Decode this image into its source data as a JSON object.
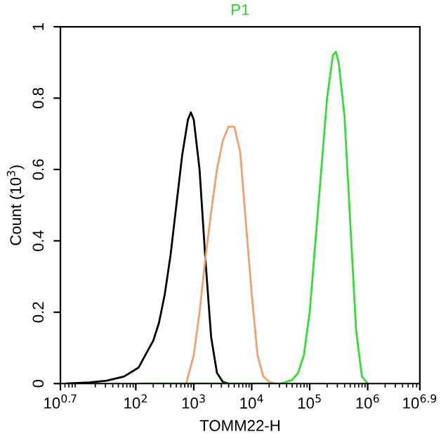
{
  "chart_data": {
    "type": "line",
    "title": "P1",
    "xlabel": "TOMM22-H",
    "ylabel": "Count (10$^{3}$)",
    "log": "x",
    "grid": false,
    "legend": false,
    "xlim": [
      5.01,
      7940000
    ],
    "xticks": [
      {
        "value": 5.01,
        "label": "10$^{0.7}$"
      },
      {
        "value": 100,
        "label": "10$^{2}$"
      },
      {
        "value": 1000,
        "label": "10$^{3}$"
      },
      {
        "value": 10000,
        "label": "10$^{4}$"
      },
      {
        "value": 100000,
        "label": "10$^{5}$"
      },
      {
        "value": 1000000,
        "label": "10$^{6}$"
      },
      {
        "value": 7940000,
        "label": "10$^{6.9}$"
      }
    ],
    "ylim": [
      0,
      1
    ],
    "yticks": [
      0,
      0.2,
      0.4,
      0.6,
      0.8,
      1
    ],
    "series": [
      {
        "color": "#000000",
        "x": [
          6.31,
          15.8,
          31.6,
          63.1,
          89.1,
          100,
          112,
          158,
          200,
          251,
          316,
          398,
          501,
          631,
          794,
          891,
          1000,
          1259,
          1585,
          1995,
          2512,
          3162,
          3981
        ],
        "values": [
          0,
          0.003,
          0.008,
          0.02,
          0.035,
          0.04,
          0.045,
          0.09,
          0.12,
          0.17,
          0.25,
          0.36,
          0.5,
          0.64,
          0.74,
          0.76,
          0.74,
          0.6,
          0.35,
          0.13,
          0.03,
          0.005,
          0
        ]
      },
      {
        "color": "#f0a070",
        "x": [
          741,
          1000,
          1259,
          1585,
          1995,
          2512,
          3162,
          3981,
          5012,
          6310,
          7943,
          10000,
          12589,
          15849,
          19953,
          25119
        ],
        "values": [
          0,
          0.08,
          0.2,
          0.35,
          0.48,
          0.6,
          0.68,
          0.72,
          0.72,
          0.65,
          0.45,
          0.25,
          0.08,
          0.02,
          0.005,
          0
        ]
      },
      {
        "color": "#33dd33",
        "x": [
          126,
          31623,
          50119,
          63096,
          79433,
          100000,
          125893,
          158489,
          199526,
          251189,
          281838,
          316228,
          398107,
          501187,
          630957,
          794328,
          1000000
        ],
        "values": [
          0,
          0,
          0.01,
          0.03,
          0.08,
          0.2,
          0.4,
          0.6,
          0.8,
          0.92,
          0.93,
          0.9,
          0.75,
          0.45,
          0.15,
          0.02,
          0
        ]
      }
    ]
  }
}
